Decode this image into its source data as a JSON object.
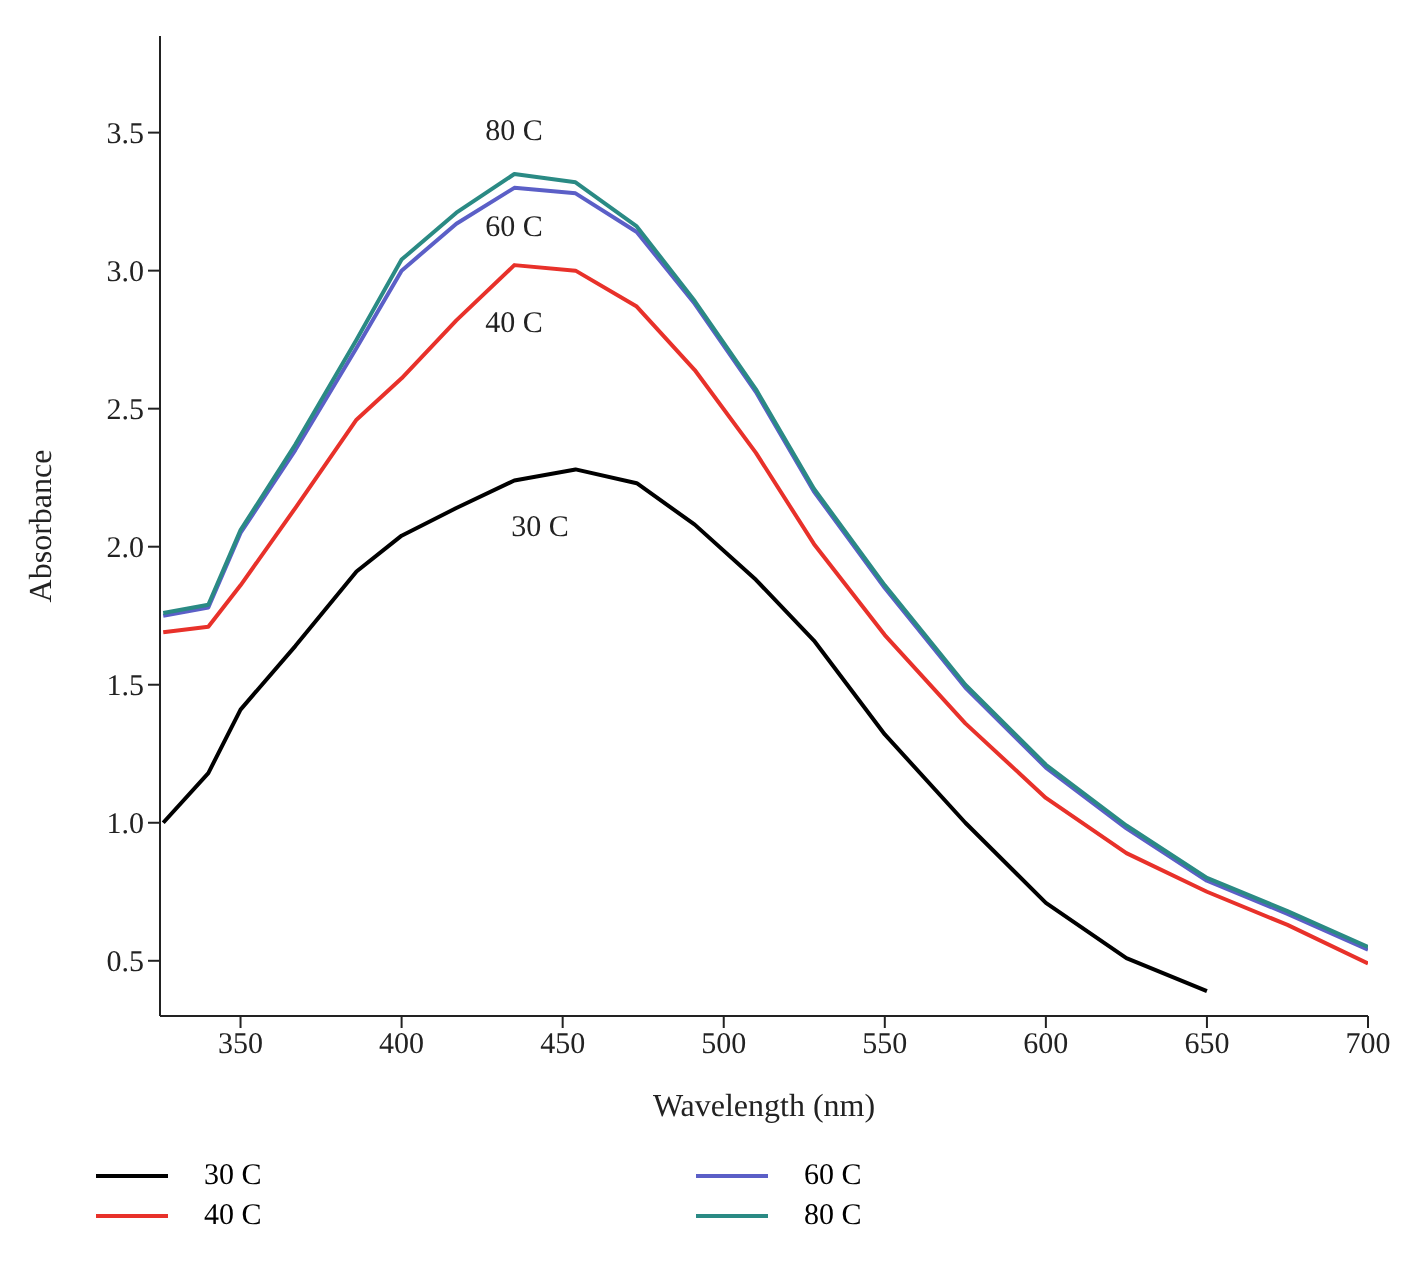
{
  "chart_data": {
    "type": "line",
    "xlabel": "Wavelength (nm)",
    "ylabel": "Absorbance",
    "x": [
      326,
      340,
      350,
      367,
      386,
      400,
      417,
      435,
      454,
      473,
      491,
      510,
      528,
      550,
      575,
      600,
      625,
      650,
      675,
      700
    ],
    "series": [
      {
        "name": "30 C",
        "color": "#000000",
        "values": [
          1.0,
          1.18,
          1.41,
          1.64,
          1.91,
          2.04,
          2.14,
          2.24,
          2.28,
          2.23,
          2.08,
          1.88,
          1.66,
          1.32,
          1.0,
          0.71,
          0.51,
          0.39,
          null,
          null
        ]
      },
      {
        "name": "40 C",
        "color": "#e8312a",
        "values": [
          1.69,
          1.71,
          1.86,
          2.14,
          2.46,
          2.61,
          2.82,
          3.02,
          3.0,
          2.87,
          2.64,
          2.34,
          2.01,
          1.68,
          1.36,
          1.09,
          0.89,
          0.75,
          0.63,
          0.49
        ]
      },
      {
        "name": "60 C",
        "color": "#5b5fc7",
        "values": [
          1.75,
          1.78,
          2.05,
          2.35,
          2.72,
          3.0,
          3.17,
          3.3,
          3.28,
          3.14,
          2.88,
          2.56,
          2.2,
          1.85,
          1.49,
          1.2,
          0.98,
          0.79,
          0.67,
          0.54
        ]
      },
      {
        "name": "80 C",
        "color": "#2a8a84",
        "values": [
          1.76,
          1.79,
          2.06,
          2.37,
          2.75,
          3.04,
          3.21,
          3.35,
          3.32,
          3.16,
          2.89,
          2.57,
          2.21,
          1.86,
          1.5,
          1.21,
          0.99,
          0.8,
          0.68,
          0.55
        ]
      }
    ],
    "xlim": [
      325,
      700
    ],
    "xticks": [
      350,
      400,
      450,
      500,
      550,
      600,
      650,
      700
    ],
    "ylim": [
      0.3,
      3.85
    ],
    "yticks": [
      {
        "value": 0.5,
        "label": "0.5"
      },
      {
        "value": 1,
        "label": "1.0"
      },
      {
        "value": 1.5,
        "label": "1.5"
      },
      {
        "value": 2,
        "label": "2.0"
      },
      {
        "value": 2.5,
        "label": "2.5"
      },
      {
        "value": 3,
        "label": "3.0"
      },
      {
        "value": 3.5,
        "label": "3.5"
      }
    ],
    "annotations": [
      "80 C",
      "60 C",
      "40 C",
      "30 C"
    ],
    "grid": false,
    "legend": "bottom",
    "marker": "none",
    "line_style": "solid"
  }
}
